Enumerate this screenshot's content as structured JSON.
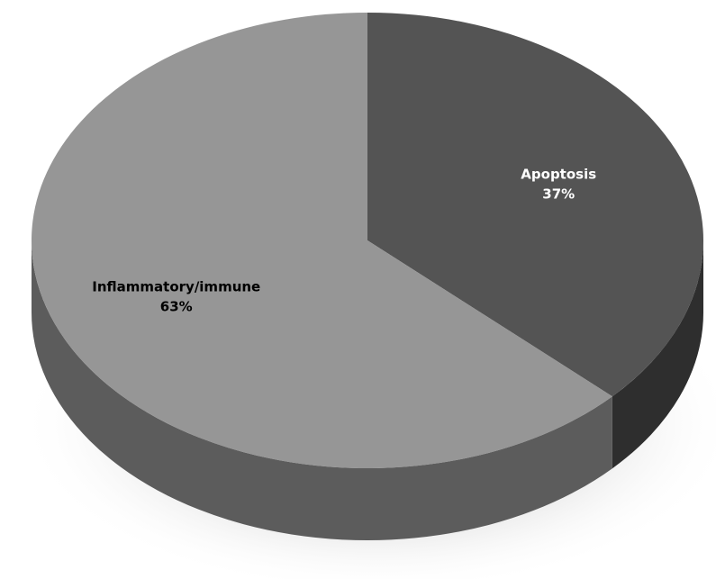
{
  "chart_data": {
    "type": "pie",
    "style": "3d",
    "title": "",
    "slices": [
      {
        "label": "Apoptosis",
        "value": 37,
        "display": "37%",
        "color": "#545454",
        "side_color": "#2e2e2e",
        "label_color": "#ffffff"
      },
      {
        "label": "Inflammatory/immune",
        "value": 63,
        "display": "63%",
        "color": "#969696",
        "side_color": "#5c5c5c",
        "label_color": "#000000"
      }
    ]
  }
}
